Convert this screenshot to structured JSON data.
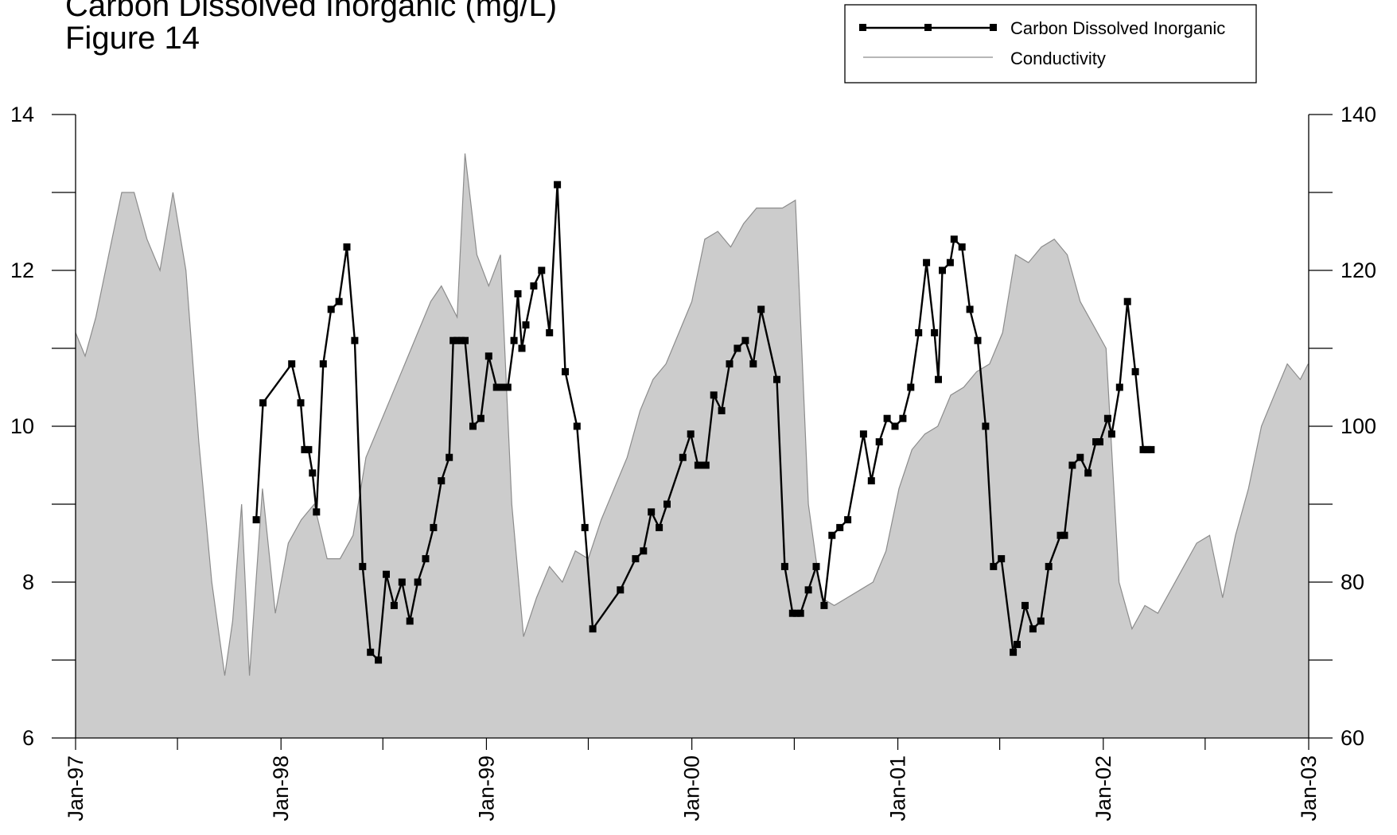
{
  "title_lines": [
    "Carbon Dissolved Inorganic (mg/L)",
    "Figure 14"
  ],
  "chart_data": {
    "type": "line",
    "title": "Carbon Dissolved Inorganic (mg/L)",
    "subtitle": "Figure 14",
    "xlabel": "",
    "ylabel": "",
    "y2label": "",
    "x_range": [
      "1997-01-01",
      "2003-01-01"
    ],
    "x_ticks": [
      "Jan-97",
      "Jan-98",
      "Jan-99",
      "Jan-00",
      "Jan-01",
      "Jan-02",
      "Jan-03"
    ],
    "ylim": [
      6,
      14
    ],
    "y_ticks": [
      "6",
      "8",
      "10",
      "12",
      "14"
    ],
    "y2lim": [
      60,
      140
    ],
    "y2_ticks": [
      "60",
      "80",
      "100",
      "120",
      "140"
    ],
    "grid": false,
    "legend_position": "top-right",
    "colors": {
      "carbon": "#000000",
      "conductivity_fill": "#cccccc",
      "conductivity_line": "#8c8c8c"
    },
    "series": [
      {
        "name": "Carbon Dissolved Inorganic",
        "axis": "left",
        "style": "line-with-square-markers",
        "points": [
          [
            "1997-11-18",
            8.8
          ],
          [
            "1997-11-30",
            10.3
          ],
          [
            "1998-01-20",
            10.8
          ],
          [
            "1998-02-05",
            10.3
          ],
          [
            "1998-02-12",
            9.7
          ],
          [
            "1998-02-19",
            9.7
          ],
          [
            "1998-02-26",
            9.4
          ],
          [
            "1998-03-05",
            8.9
          ],
          [
            "1998-03-17",
            10.8
          ],
          [
            "1998-03-31",
            11.5
          ],
          [
            "1998-04-14",
            11.6
          ],
          [
            "1998-04-28",
            12.3
          ],
          [
            "1998-05-12",
            11.1
          ],
          [
            "1998-05-26",
            8.2
          ],
          [
            "1998-06-09",
            7.1
          ],
          [
            "1998-06-23",
            7.0
          ],
          [
            "1998-07-07",
            8.1
          ],
          [
            "1998-07-21",
            7.7
          ],
          [
            "1998-08-04",
            8.0
          ],
          [
            "1998-08-18",
            7.5
          ],
          [
            "1998-09-01",
            8.0
          ],
          [
            "1998-09-15",
            8.3
          ],
          [
            "1998-09-29",
            8.7
          ],
          [
            "1998-10-13",
            9.3
          ],
          [
            "1998-10-27",
            9.6
          ],
          [
            "1998-11-03",
            11.1
          ],
          [
            "1998-11-10",
            11.1
          ],
          [
            "1998-11-17",
            11.1
          ],
          [
            "1998-11-24",
            11.1
          ],
          [
            "1998-12-08",
            10.0
          ],
          [
            "1998-12-22",
            10.1
          ],
          [
            "1999-01-05",
            10.9
          ],
          [
            "1999-01-19",
            10.5
          ],
          [
            "1999-01-29",
            10.5
          ],
          [
            "1999-02-08",
            10.5
          ],
          [
            "1999-02-19",
            11.1
          ],
          [
            "1999-02-26",
            11.7
          ],
          [
            "1999-03-05",
            11.0
          ],
          [
            "1999-03-12",
            11.3
          ],
          [
            "1999-03-26",
            11.8
          ],
          [
            "1999-04-09",
            12.0
          ],
          [
            "1999-04-23",
            11.2
          ],
          [
            "1999-05-07",
            13.1
          ],
          [
            "1999-05-21",
            10.7
          ],
          [
            "1999-06-11",
            10.0
          ],
          [
            "1999-06-25",
            8.7
          ],
          [
            "1999-07-09",
            7.4
          ],
          [
            "1999-08-27",
            7.9
          ],
          [
            "1999-09-23",
            8.3
          ],
          [
            "1999-10-07",
            8.4
          ],
          [
            "1999-10-21",
            8.9
          ],
          [
            "1999-11-04",
            8.7
          ],
          [
            "1999-11-18",
            9.0
          ],
          [
            "1999-12-16",
            9.6
          ],
          [
            "1999-12-30",
            9.9
          ],
          [
            "2000-01-12",
            9.5
          ],
          [
            "2000-01-19",
            9.5
          ],
          [
            "2000-01-26",
            9.5
          ],
          [
            "2000-02-09",
            10.4
          ],
          [
            "2000-02-23",
            10.2
          ],
          [
            "2000-03-08",
            10.8
          ],
          [
            "2000-03-22",
            11.0
          ],
          [
            "2000-04-05",
            11.1
          ],
          [
            "2000-04-19",
            10.8
          ],
          [
            "2000-05-03",
            11.5
          ],
          [
            "2000-05-31",
            10.6
          ],
          [
            "2000-06-14",
            8.2
          ],
          [
            "2000-06-28",
            7.6
          ],
          [
            "2000-07-05",
            7.6
          ],
          [
            "2000-07-12",
            7.6
          ],
          [
            "2000-07-26",
            7.9
          ],
          [
            "2000-08-09",
            8.2
          ],
          [
            "2000-08-23",
            7.7
          ],
          [
            "2000-09-06",
            8.6
          ],
          [
            "2000-09-20",
            8.7
          ],
          [
            "2000-10-04",
            8.8
          ],
          [
            "2000-11-01",
            9.9
          ],
          [
            "2000-11-15",
            9.3
          ],
          [
            "2000-11-29",
            9.8
          ],
          [
            "2000-12-13",
            10.1
          ],
          [
            "2000-12-27",
            10.0
          ],
          [
            "2001-01-10",
            10.1
          ],
          [
            "2001-01-24",
            10.5
          ],
          [
            "2001-02-07",
            11.2
          ],
          [
            "2001-02-21",
            12.1
          ],
          [
            "2001-03-07",
            11.2
          ],
          [
            "2001-03-14",
            10.6
          ],
          [
            "2001-03-21",
            12.0
          ],
          [
            "2001-04-04",
            12.1
          ],
          [
            "2001-04-11",
            12.4
          ],
          [
            "2001-04-25",
            12.3
          ],
          [
            "2001-05-09",
            11.5
          ],
          [
            "2001-05-23",
            11.1
          ],
          [
            "2001-06-06",
            10.0
          ],
          [
            "2001-06-20",
            8.2
          ],
          [
            "2001-07-04",
            8.3
          ],
          [
            "2001-07-25",
            7.1
          ],
          [
            "2001-08-01",
            7.2
          ],
          [
            "2001-08-15",
            7.7
          ],
          [
            "2001-08-29",
            7.4
          ],
          [
            "2001-09-12",
            7.5
          ],
          [
            "2001-09-26",
            8.2
          ],
          [
            "2001-10-17",
            8.6
          ],
          [
            "2001-10-24",
            8.6
          ],
          [
            "2001-11-07",
            9.5
          ],
          [
            "2001-11-21",
            9.6
          ],
          [
            "2001-12-05",
            9.4
          ],
          [
            "2001-12-19",
            9.8
          ],
          [
            "2001-12-26",
            9.8
          ],
          [
            "2002-01-09",
            10.1
          ],
          [
            "2002-01-16",
            9.9
          ],
          [
            "2002-01-30",
            10.5
          ],
          [
            "2002-02-13",
            11.6
          ],
          [
            "2002-02-27",
            10.7
          ],
          [
            "2002-03-13",
            9.7
          ],
          [
            "2002-03-20",
            9.7
          ],
          [
            "2002-03-27",
            9.7
          ]
        ]
      },
      {
        "name": "Conductivity",
        "axis": "right",
        "style": "filled-area",
        "points": [
          [
            "1997-01-01",
            112
          ],
          [
            "1997-01-18",
            109
          ],
          [
            "1997-02-06",
            114
          ],
          [
            "1997-03-01",
            122
          ],
          [
            "1997-03-24",
            130
          ],
          [
            "1997-04-15",
            130
          ],
          [
            "1997-05-08",
            124
          ],
          [
            "1997-05-31",
            120
          ],
          [
            "1997-06-23",
            130
          ],
          [
            "1997-07-16",
            120
          ],
          [
            "1997-08-08",
            98
          ],
          [
            "1997-08-31",
            80
          ],
          [
            "1997-09-23",
            68
          ],
          [
            "1997-10-07",
            75
          ],
          [
            "1997-10-23",
            90
          ],
          [
            "1997-11-06",
            68
          ],
          [
            "1997-11-29",
            92
          ],
          [
            "1997-12-22",
            76
          ],
          [
            "1998-01-14",
            85
          ],
          [
            "1998-02-06",
            88
          ],
          [
            "1998-03-01",
            90
          ],
          [
            "1998-03-24",
            83
          ],
          [
            "1998-04-16",
            83
          ],
          [
            "1998-05-09",
            86
          ],
          [
            "1998-06-01",
            96
          ],
          [
            "1998-06-24",
            100
          ],
          [
            "1998-07-17",
            104
          ],
          [
            "1998-08-09",
            108
          ],
          [
            "1998-09-01",
            112
          ],
          [
            "1998-09-24",
            116
          ],
          [
            "1998-10-13",
            118
          ],
          [
            "1998-10-27",
            116
          ],
          [
            "1998-11-10",
            114
          ],
          [
            "1998-11-24",
            135
          ],
          [
            "1998-12-15",
            122
          ],
          [
            "1999-01-05",
            118
          ],
          [
            "1999-01-26",
            122
          ],
          [
            "1999-02-15",
            90
          ],
          [
            "1999-03-08",
            73
          ],
          [
            "1999-03-31",
            78
          ],
          [
            "1999-04-23",
            82
          ],
          [
            "1999-05-16",
            80
          ],
          [
            "1999-06-08",
            84
          ],
          [
            "1999-07-01",
            83
          ],
          [
            "1999-07-24",
            88
          ],
          [
            "1999-08-16",
            92
          ],
          [
            "1999-09-08",
            96
          ],
          [
            "1999-10-01",
            102
          ],
          [
            "1999-10-24",
            106
          ],
          [
            "1999-11-16",
            108
          ],
          [
            "1999-12-09",
            112
          ],
          [
            "2000-01-01",
            116
          ],
          [
            "2000-01-24",
            124
          ],
          [
            "2000-02-16",
            125
          ],
          [
            "2000-03-10",
            123
          ],
          [
            "2000-04-02",
            126
          ],
          [
            "2000-04-25",
            128
          ],
          [
            "2000-05-18",
            128
          ],
          [
            "2000-06-10",
            128
          ],
          [
            "2000-07-03",
            129
          ],
          [
            "2000-07-26",
            90
          ],
          [
            "2000-08-18",
            78
          ],
          [
            "2000-09-10",
            77
          ],
          [
            "2000-10-03",
            78
          ],
          [
            "2000-10-26",
            79
          ],
          [
            "2000-11-18",
            80
          ],
          [
            "2000-12-11",
            84
          ],
          [
            "2001-01-03",
            92
          ],
          [
            "2001-01-26",
            97
          ],
          [
            "2001-02-18",
            99
          ],
          [
            "2001-03-13",
            100
          ],
          [
            "2001-04-05",
            104
          ],
          [
            "2001-04-28",
            105
          ],
          [
            "2001-05-21",
            107
          ],
          [
            "2001-06-13",
            108
          ],
          [
            "2001-07-06",
            112
          ],
          [
            "2001-07-29",
            122
          ],
          [
            "2001-08-21",
            121
          ],
          [
            "2001-09-13",
            123
          ],
          [
            "2001-10-06",
            124
          ],
          [
            "2001-10-29",
            122
          ],
          [
            "2001-11-21",
            116
          ],
          [
            "2001-12-14",
            113
          ],
          [
            "2002-01-06",
            110
          ],
          [
            "2002-01-29",
            80
          ],
          [
            "2002-02-21",
            74
          ],
          [
            "2002-03-16",
            77
          ],
          [
            "2002-04-08",
            76
          ],
          [
            "2002-05-01",
            79
          ],
          [
            "2002-05-24",
            82
          ],
          [
            "2002-06-16",
            85
          ],
          [
            "2002-07-09",
            86
          ],
          [
            "2002-08-01",
            78
          ],
          [
            "2002-08-24",
            86
          ],
          [
            "2002-09-16",
            92
          ],
          [
            "2002-10-09",
            100
          ],
          [
            "2002-11-01",
            104
          ],
          [
            "2002-11-24",
            108
          ],
          [
            "2002-12-17",
            106
          ],
          [
            "2002-12-31",
            108
          ]
        ]
      }
    ]
  }
}
